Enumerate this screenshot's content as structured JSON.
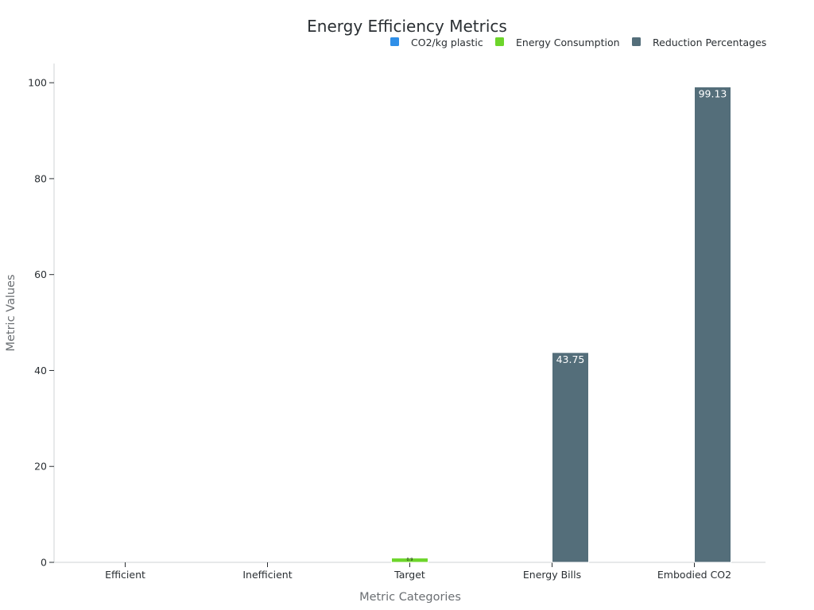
{
  "chart_data": {
    "type": "bar",
    "title": "Energy Efficiency Metrics",
    "xlabel": "Metric Categories",
    "ylabel": "Metric Values",
    "categories": [
      "Efficient",
      "Inefficient",
      "Target",
      "Energy Bills",
      "Embodied CO2"
    ],
    "series": [
      {
        "name": "CO2/kg plastic",
        "color": "#2f8fe8",
        "values": [
          0,
          0,
          null,
          null,
          null
        ]
      },
      {
        "name": "Energy Consumption",
        "color": "#6dd52b",
        "values": [
          null,
          null,
          0.9,
          null,
          null
        ]
      },
      {
        "name": "Reduction Percentages",
        "color": "#546e7a",
        "values": [
          null,
          null,
          null,
          43.75,
          99.13
        ]
      }
    ],
    "data_labels": [
      {
        "category": "Target",
        "series": "Energy Consumption",
        "text": "0.9"
      },
      {
        "category": "Energy Bills",
        "series": "Reduction Percentages",
        "text": "43.75"
      },
      {
        "category": "Embodied CO2",
        "series": "Reduction Percentages",
        "text": "99.13"
      }
    ],
    "ylim": [
      0,
      104
    ],
    "yticks": [
      0,
      20,
      40,
      60,
      80,
      100
    ],
    "grid": false,
    "legend_position": "top-right"
  }
}
